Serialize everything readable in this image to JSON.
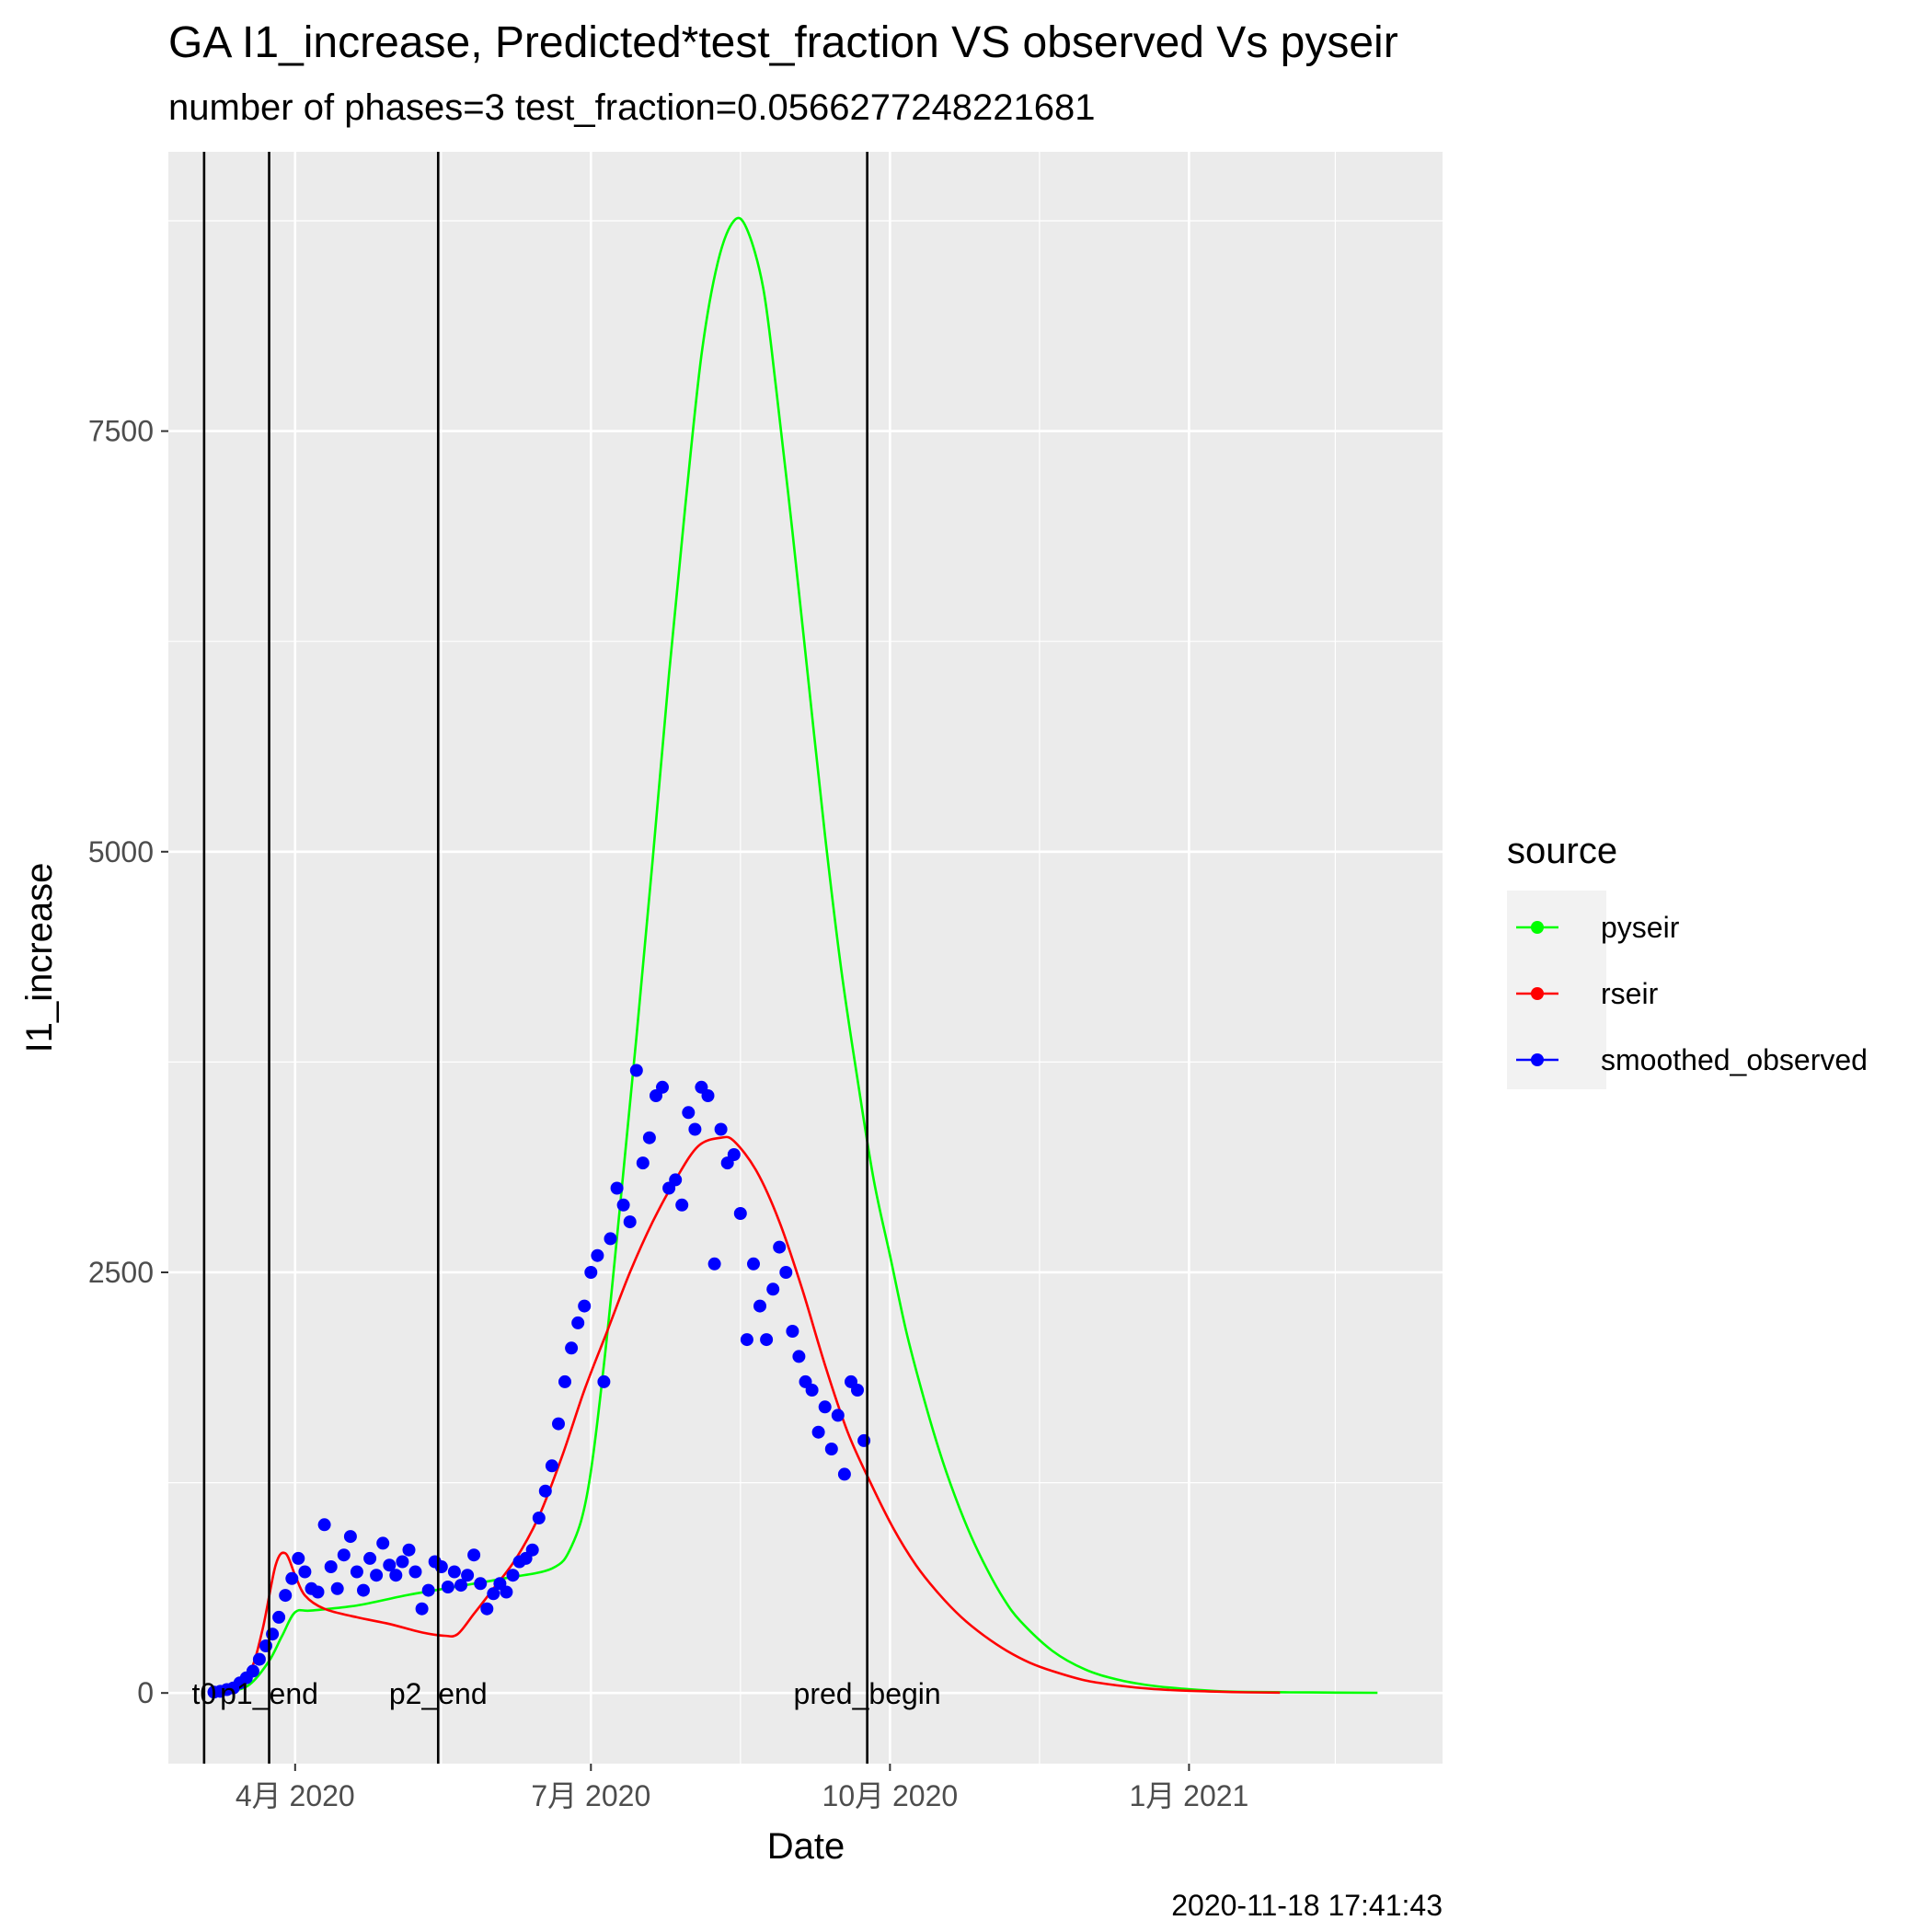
{
  "chart_data": {
    "type": "line",
    "title": "GA I1_increase, Predicted*test_fraction VS observed Vs pyseir",
    "subtitle": "number of phases=3   test_fraction=0.0566277248221681",
    "xlabel": "Date",
    "ylabel": "I1_increase",
    "footnote": "2020-11-18 17:41:43",
    "x_is_date": true,
    "xlim": [
      "2020-02-22",
      "2021-03-20"
    ],
    "ylim": [
      -420,
      9160
    ],
    "x_ticks": [
      {
        "date": "2020-04-01",
        "label": "4月 2020"
      },
      {
        "date": "2020-07-01",
        "label": "7月 2020"
      },
      {
        "date": "2020-10-01",
        "label": "10月 2020"
      },
      {
        "date": "2021-01-01",
        "label": "1月 2021"
      }
    ],
    "x_minor_ticks": [
      "2020-02-15",
      "2020-05-16",
      "2020-08-16",
      "2020-11-16",
      "2021-02-15"
    ],
    "y_ticks": [
      0,
      2500,
      5000,
      7500
    ],
    "y_minor_ticks": [
      1250,
      3750,
      6250,
      8750
    ],
    "grid": true,
    "legend": {
      "title": "source",
      "position": "right",
      "entries": [
        {
          "name": "pyseir",
          "color": "#00ff00"
        },
        {
          "name": "rseir",
          "color": "#ff0000"
        },
        {
          "name": "smoothed_observed",
          "color": "#0000ff"
        }
      ]
    },
    "vlines": [
      {
        "date": "2020-03-04",
        "label": "t0"
      },
      {
        "date": "2020-03-24",
        "label": "p1_end"
      },
      {
        "date": "2020-05-15",
        "label": "p2_end"
      },
      {
        "date": "2020-09-24",
        "label": "pred_begin"
      }
    ],
    "series": [
      {
        "name": "pyseir",
        "color": "#00ff00",
        "x": [
          "2020-03-06",
          "2020-03-12",
          "2020-03-18",
          "2020-03-24",
          "2020-03-28",
          "2020-04-01",
          "2020-04-06",
          "2020-04-20",
          "2020-05-05",
          "2020-05-20",
          "2020-06-04",
          "2020-06-19",
          "2020-06-25",
          "2020-06-30",
          "2020-07-05",
          "2020-07-10",
          "2020-07-15",
          "2020-07-20",
          "2020-07-25",
          "2020-07-30",
          "2020-08-04",
          "2020-08-09",
          "2020-08-14",
          "2020-08-18",
          "2020-08-23",
          "2020-08-27",
          "2020-09-01",
          "2020-09-06",
          "2020-09-11",
          "2020-09-16",
          "2020-09-21",
          "2020-09-26",
          "2020-10-01",
          "2020-10-06",
          "2020-10-11",
          "2020-10-16",
          "2020-10-21",
          "2020-10-26",
          "2020-10-31",
          "2020-11-05",
          "2020-11-10",
          "2020-11-20",
          "2020-11-30",
          "2020-12-10",
          "2020-12-20",
          "2020-12-30",
          "2021-01-09",
          "2021-01-19",
          "2021-02-08",
          "2021-02-28"
        ],
        "y": [
          0,
          10,
          50,
          190,
          340,
          480,
          490,
          520,
          580,
          630,
          680,
          740,
          870,
          1200,
          1950,
          2900,
          3900,
          4950,
          6050,
          7050,
          7950,
          8500,
          8750,
          8700,
          8350,
          7750,
          6900,
          6000,
          5100,
          4300,
          3650,
          3050,
          2600,
          2150,
          1780,
          1450,
          1170,
          930,
          730,
          560,
          430,
          250,
          140,
          80,
          45,
          25,
          12,
          6,
          3,
          1
        ]
      },
      {
        "name": "rseir",
        "color": "#ff0000",
        "x": [
          "2020-03-06",
          "2020-03-12",
          "2020-03-18",
          "2020-03-22",
          "2020-03-26",
          "2020-03-29",
          "2020-04-01",
          "2020-04-04",
          "2020-04-10",
          "2020-04-20",
          "2020-04-30",
          "2020-05-10",
          "2020-05-17",
          "2020-05-21",
          "2020-05-26",
          "2020-06-01",
          "2020-06-08",
          "2020-06-15",
          "2020-06-22",
          "2020-06-29",
          "2020-07-06",
          "2020-07-13",
          "2020-07-20",
          "2020-07-27",
          "2020-08-03",
          "2020-08-10",
          "2020-08-14",
          "2020-08-21",
          "2020-08-28",
          "2020-09-04",
          "2020-09-11",
          "2020-09-18",
          "2020-09-25",
          "2020-10-02",
          "2020-10-09",
          "2020-10-16",
          "2020-10-23",
          "2020-10-30",
          "2020-11-06",
          "2020-11-13",
          "2020-11-20",
          "2020-11-30",
          "2020-12-10",
          "2020-12-20",
          "2020-12-30",
          "2021-01-09",
          "2021-01-19",
          "2021-01-29"
        ],
        "y": [
          0,
          20,
          120,
          380,
          760,
          830,
          700,
          580,
          500,
          450,
          410,
          360,
          340,
          350,
          470,
          620,
          800,
          1050,
          1400,
          1800,
          2150,
          2500,
          2800,
          3050,
          3250,
          3300,
          3280,
          3100,
          2800,
          2400,
          1950,
          1550,
          1250,
          980,
          760,
          590,
          450,
          340,
          250,
          180,
          130,
          75,
          45,
          25,
          14,
          8,
          4,
          2
        ]
      },
      {
        "name": "smoothed_observed",
        "color": "#0000ff",
        "x": [
          "2020-03-07",
          "2020-03-09",
          "2020-03-11",
          "2020-03-13",
          "2020-03-15",
          "2020-03-17",
          "2020-03-19",
          "2020-03-21",
          "2020-03-23",
          "2020-03-25",
          "2020-03-27",
          "2020-03-29",
          "2020-03-31",
          "2020-04-02",
          "2020-04-04",
          "2020-04-06",
          "2020-04-08",
          "2020-04-10",
          "2020-04-12",
          "2020-04-14",
          "2020-04-16",
          "2020-04-18",
          "2020-04-20",
          "2020-04-22",
          "2020-04-24",
          "2020-04-26",
          "2020-04-28",
          "2020-04-30",
          "2020-05-02",
          "2020-05-04",
          "2020-05-06",
          "2020-05-08",
          "2020-05-10",
          "2020-05-12",
          "2020-05-14",
          "2020-05-16",
          "2020-05-18",
          "2020-05-20",
          "2020-05-22",
          "2020-05-24",
          "2020-05-26",
          "2020-05-28",
          "2020-05-30",
          "2020-06-01",
          "2020-06-03",
          "2020-06-05",
          "2020-06-07",
          "2020-06-09",
          "2020-06-11",
          "2020-06-13",
          "2020-06-15",
          "2020-06-17",
          "2020-06-19",
          "2020-06-21",
          "2020-06-23",
          "2020-06-25",
          "2020-06-27",
          "2020-06-29",
          "2020-07-01",
          "2020-07-03",
          "2020-07-05",
          "2020-07-07",
          "2020-07-09",
          "2020-07-11",
          "2020-07-13",
          "2020-07-15",
          "2020-07-17",
          "2020-07-19",
          "2020-07-21",
          "2020-07-23",
          "2020-07-25",
          "2020-07-27",
          "2020-07-29",
          "2020-07-31",
          "2020-08-02",
          "2020-08-04",
          "2020-08-06",
          "2020-08-08",
          "2020-08-10",
          "2020-08-12",
          "2020-08-14",
          "2020-08-16",
          "2020-08-18",
          "2020-08-20",
          "2020-08-22",
          "2020-08-24",
          "2020-08-26",
          "2020-08-28",
          "2020-08-30",
          "2020-09-01",
          "2020-09-03",
          "2020-09-05",
          "2020-09-07",
          "2020-09-09",
          "2020-09-11",
          "2020-09-13",
          "2020-09-15",
          "2020-09-17",
          "2020-09-19",
          "2020-09-21",
          "2020-09-23"
        ],
        "y": [
          5,
          10,
          20,
          30,
          60,
          90,
          130,
          200,
          280,
          350,
          450,
          580,
          680,
          800,
          720,
          620,
          600,
          1000,
          750,
          620,
          820,
          930,
          720,
          610,
          800,
          700,
          890,
          760,
          700,
          780,
          850,
          720,
          500,
          610,
          780,
          750,
          630,
          720,
          640,
          700,
          820,
          650,
          500,
          590,
          650,
          600,
          700,
          780,
          800,
          850,
          1040,
          1200,
          1350,
          1600,
          1850,
          2050,
          2200,
          2300,
          2500,
          2600,
          1850,
          2700,
          3000,
          2900,
          2800,
          3700,
          3150,
          3300,
          3550,
          3600,
          3000,
          3050,
          2900,
          3450,
          3350,
          3600,
          3550,
          2550,
          3350,
          3150,
          3200,
          2850,
          2100,
          2550,
          2300,
          2100,
          2400,
          2650,
          2500,
          2150,
          2000,
          1850,
          1800,
          1550,
          1700,
          1450,
          1650,
          1300,
          1850,
          1800,
          1500
        ]
      }
    ]
  }
}
